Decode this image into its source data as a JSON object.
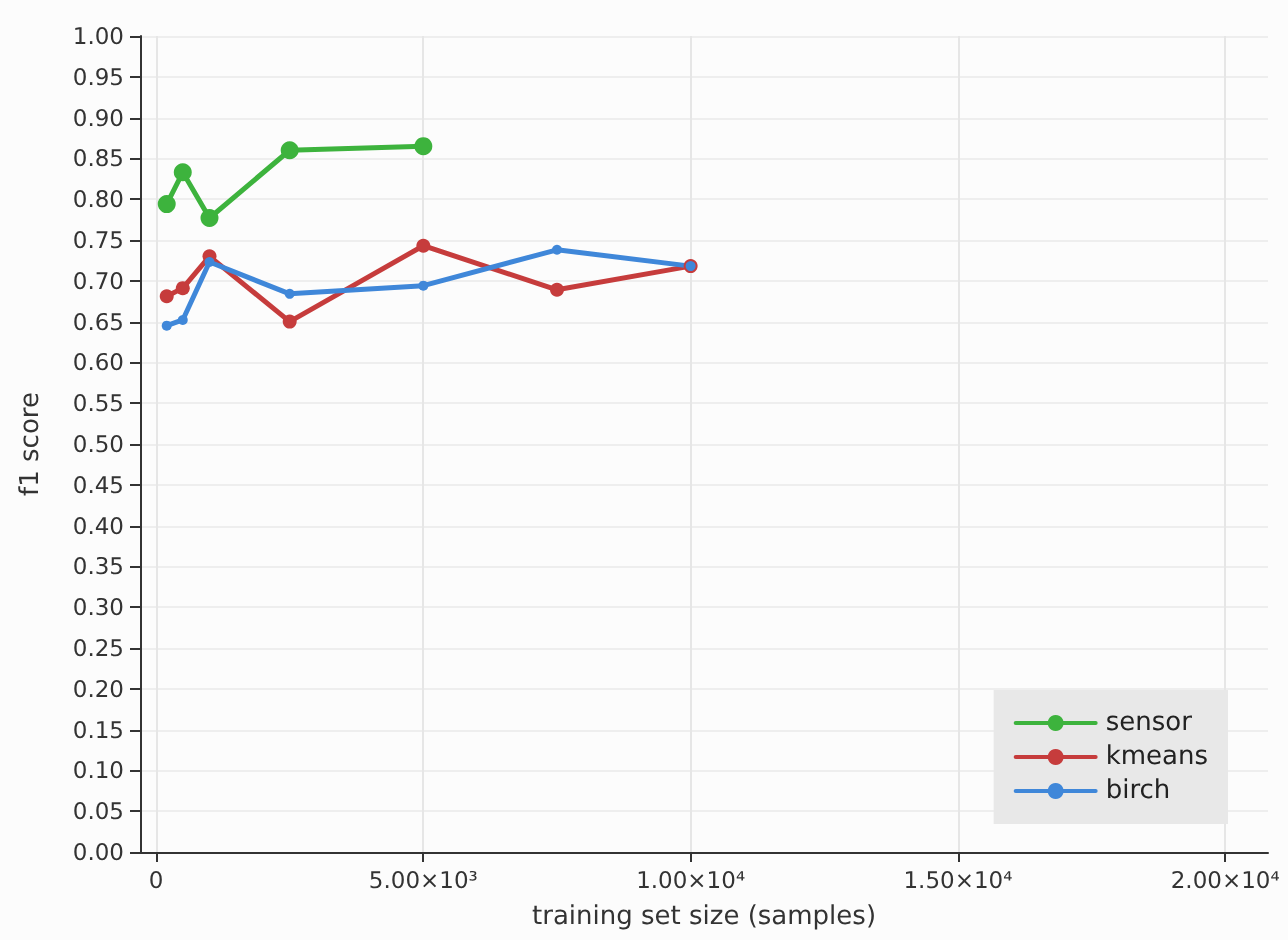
{
  "chart_data": {
    "type": "line",
    "xlabel": "training set size (samples)",
    "ylabel": "f1 score",
    "series": [
      {
        "name": "sensor",
        "color": "#3db33d",
        "x": [
          200,
          500,
          1000,
          2500,
          5000
        ],
        "values": [
          0.794,
          0.833,
          0.777,
          0.86,
          0.865
        ]
      },
      {
        "name": "kmeans",
        "color": "#c63c3c",
        "x": [
          200,
          500,
          1000,
          2500,
          5000,
          7500,
          10000
        ],
        "values": [
          0.681,
          0.691,
          0.73,
          0.65,
          0.743,
          0.689,
          0.718
        ]
      },
      {
        "name": "birch",
        "color": "#3f87d9",
        "x": [
          200,
          500,
          1000,
          2500,
          5000,
          7500,
          10000
        ],
        "values": [
          0.645,
          0.652,
          0.723,
          0.684,
          0.694,
          0.738,
          0.718
        ]
      }
    ],
    "xlim": [
      -300,
      20800
    ],
    "xticks": [
      0,
      {
        "value": 5000,
        "label": "5.00×10³"
      },
      {
        "value": 10000,
        "label": "1.00×10⁴"
      },
      {
        "value": 15000,
        "label": "1.50×10⁴"
      },
      {
        "value": 20000,
        "label": "2.00×10⁴"
      }
    ],
    "ylim": [
      0,
      1
    ],
    "yticks": [
      {
        "value": 0,
        "label": "0.00"
      },
      {
        "value": 0.05,
        "label": "0.05"
      },
      {
        "value": 0.1,
        "label": "0.10"
      },
      {
        "value": 0.15,
        "label": "0.15"
      },
      {
        "value": 0.2,
        "label": "0.20"
      },
      {
        "value": 0.25,
        "label": "0.25"
      },
      {
        "value": 0.3,
        "label": "0.30"
      },
      {
        "value": 0.35,
        "label": "0.35"
      },
      {
        "value": 0.4,
        "label": "0.40"
      },
      {
        "value": 0.45,
        "label": "0.45"
      },
      {
        "value": 0.5,
        "label": "0.50"
      },
      {
        "value": 0.55,
        "label": "0.55"
      },
      {
        "value": 0.6,
        "label": "0.60"
      },
      {
        "value": 0.65,
        "label": "0.65"
      },
      {
        "value": 0.7,
        "label": "0.70"
      },
      {
        "value": 0.75,
        "label": "0.75"
      },
      {
        "value": 0.8,
        "label": "0.80"
      },
      {
        "value": 0.85,
        "label": "0.85"
      },
      {
        "value": 0.9,
        "label": "0.90"
      },
      {
        "value": 0.95,
        "label": "0.95"
      },
      {
        "value": 1,
        "label": "1.00"
      }
    ],
    "grid": true,
    "legend": "bottom right",
    "marker": "circle",
    "line_style": "solid"
  }
}
